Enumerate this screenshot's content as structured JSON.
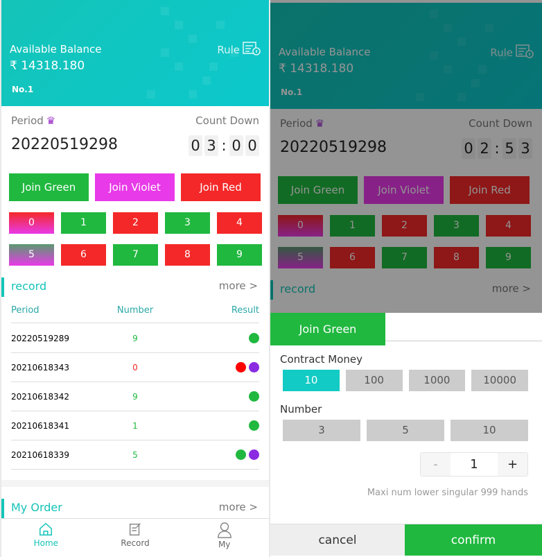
{
  "header": {
    "balance_label": "Available Balance",
    "balance": "₹ 14318.180",
    "rank": "No.1",
    "rule_label": "Rule"
  },
  "period": {
    "label": "Period",
    "number": "20220519298",
    "countdown_label": "Count Down"
  },
  "screens": [
    {
      "countdown": [
        "0",
        "3",
        ":",
        "0",
        "0"
      ]
    },
    {
      "countdown": [
        "0",
        "2",
        ":",
        "5",
        "3"
      ]
    }
  ],
  "join_buttons": [
    {
      "label": "Join Green",
      "color": "green"
    },
    {
      "label": "Join Violet",
      "color": "violet"
    },
    {
      "label": "Join Red",
      "color": "red"
    }
  ],
  "numbers": [
    "0",
    "1",
    "2",
    "3",
    "4",
    "5",
    "6",
    "7",
    "8",
    "9"
  ],
  "colors": {
    "green": "#20b83f",
    "violet": "#e83ae8",
    "red": "#f42828",
    "accent": "#14c4b8"
  },
  "record": {
    "title": "record",
    "more": "more >",
    "columns": [
      "Period",
      "Number",
      "Result"
    ],
    "rows": [
      {
        "period": "20220519289",
        "number": "9",
        "number_color": "green",
        "result": [
          "green"
        ]
      },
      {
        "period": "20210618343",
        "number": "0",
        "number_color": "red",
        "result": [
          "red",
          "violet"
        ]
      },
      {
        "period": "20210618342",
        "number": "9",
        "number_color": "green",
        "result": [
          "green"
        ]
      },
      {
        "period": "20210618341",
        "number": "1",
        "number_color": "green",
        "result": [
          "green"
        ]
      },
      {
        "period": "20210618339",
        "number": "5",
        "number_color": "green",
        "result": [
          "green",
          "violet"
        ]
      }
    ]
  },
  "my_order": {
    "title": "My Order",
    "more": "more >"
  },
  "nav": [
    {
      "label": "Home",
      "icon": "home-icon",
      "active": true
    },
    {
      "label": "Record",
      "icon": "record-icon",
      "active": false
    },
    {
      "label": "My",
      "icon": "user-icon",
      "active": false
    }
  ],
  "sheet": {
    "tab": "Join Green",
    "contract_label": "Contract Money",
    "contract_options": [
      "10",
      "100",
      "1000",
      "10000"
    ],
    "contract_selected": "10",
    "number_label": "Number",
    "number_options": [
      "3",
      "5",
      "10"
    ],
    "stepper": {
      "minus": "-",
      "value": "1",
      "plus": "+"
    },
    "hint": "Maxi num lower singular 999 hands",
    "cancel": "cancel",
    "confirm": "confirm"
  }
}
